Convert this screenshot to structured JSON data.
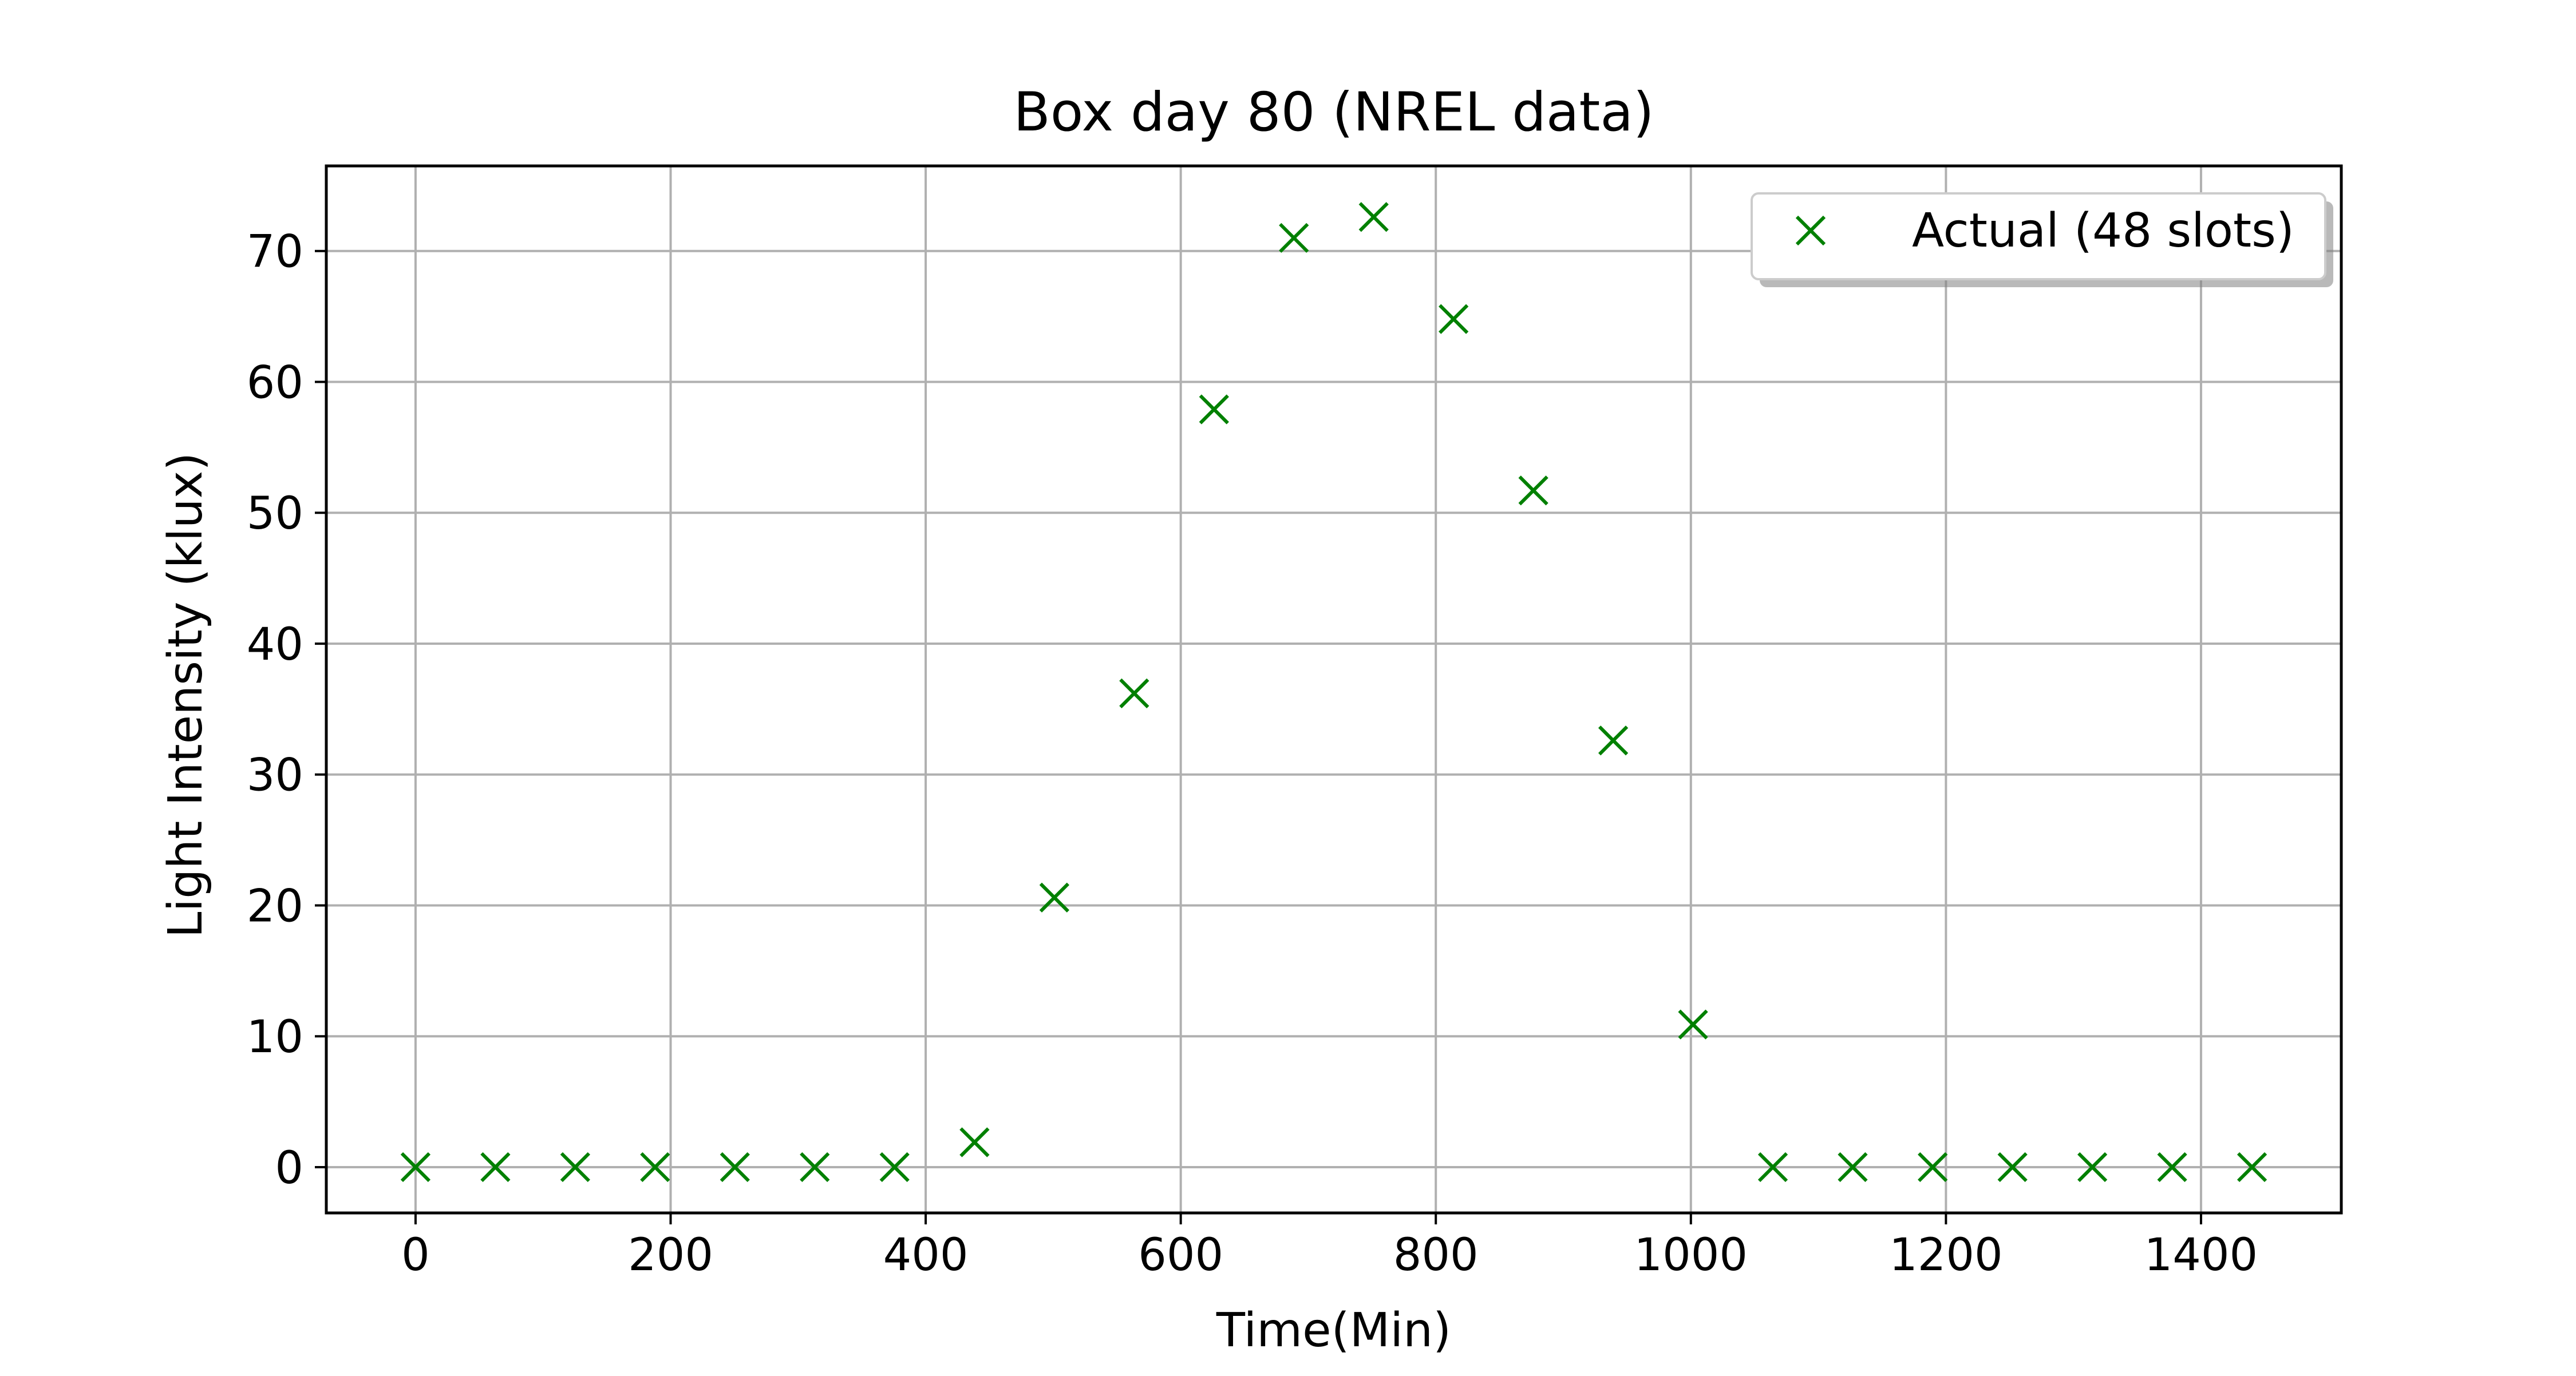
{
  "chart_data": {
    "type": "scatter",
    "title": "Box day 80 (NREL data)",
    "xlabel": "Time(Min)",
    "ylabel": "Light Intensity (klux)",
    "xlim": [
      -70,
      1510
    ],
    "ylim": [
      -3.5,
      76.5
    ],
    "xticks": [
      0,
      200,
      400,
      600,
      800,
      1000,
      1200,
      1400
    ],
    "yticks": [
      0,
      10,
      20,
      30,
      40,
      50,
      60,
      70
    ],
    "grid": true,
    "legend_position": "top-right",
    "marker": "x",
    "marker_color": "#008000",
    "series": [
      {
        "name": "Actual (48 slots)",
        "color": "#008000",
        "x": [
          0,
          62.6,
          125.2,
          187.8,
          250.4,
          313,
          375.6,
          438.3,
          500.9,
          563.5,
          626.1,
          688.7,
          751.3,
          813.9,
          876.5,
          939.1,
          1001.7,
          1064.3,
          1126.9,
          1189.6,
          1252.2,
          1314.8,
          1377.4,
          1440
        ],
        "y": [
          0,
          0,
          0,
          0,
          0,
          0,
          0,
          1.9,
          20.6,
          36.2,
          57.9,
          71.0,
          72.6,
          64.8,
          51.7,
          32.6,
          10.9,
          0,
          0,
          0,
          0,
          0,
          0,
          0
        ]
      }
    ]
  }
}
